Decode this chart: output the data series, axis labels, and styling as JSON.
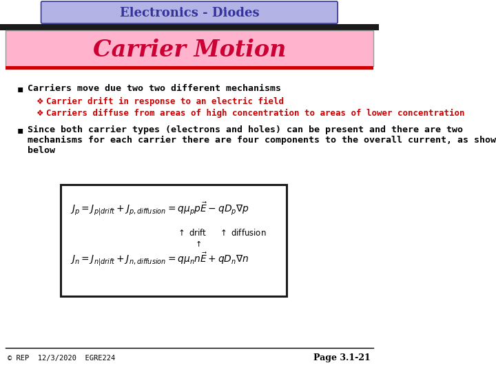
{
  "title_bar_text": "Electronics - Diodes",
  "title_bar_bg": "#b3b3e6",
  "title_bar_border": "#333399",
  "section_title": "Carrier Motion",
  "section_title_color": "#cc0033",
  "section_title_bg": "#ffb3cc",
  "section_title_border": "#999999",
  "thick_bar_color": "#1a1a1a",
  "red_bar_color": "#cc0000",
  "bullet1": "Carriers move due two two different mechanisms",
  "sub1": "Carrier drift in response to an electric field",
  "sub2": "Carriers diffuse from areas of high concentration to areas of lower concentration",
  "sub_color": "#cc0000",
  "bullet2_line1": "Since both carrier types (electrons and holes) can be present and there are two",
  "bullet2_line2": "mechanisms for each carrier there are four components to the overall current, as shown",
  "bullet2_line3": "below",
  "footer_left": "© REP  12/3/2020  EGRE224",
  "footer_right": "Page 3.1-21",
  "bg_color": "#ffffff",
  "eq_box_bg": "#ffffff",
  "eq_box_border": "#1a1a1a"
}
